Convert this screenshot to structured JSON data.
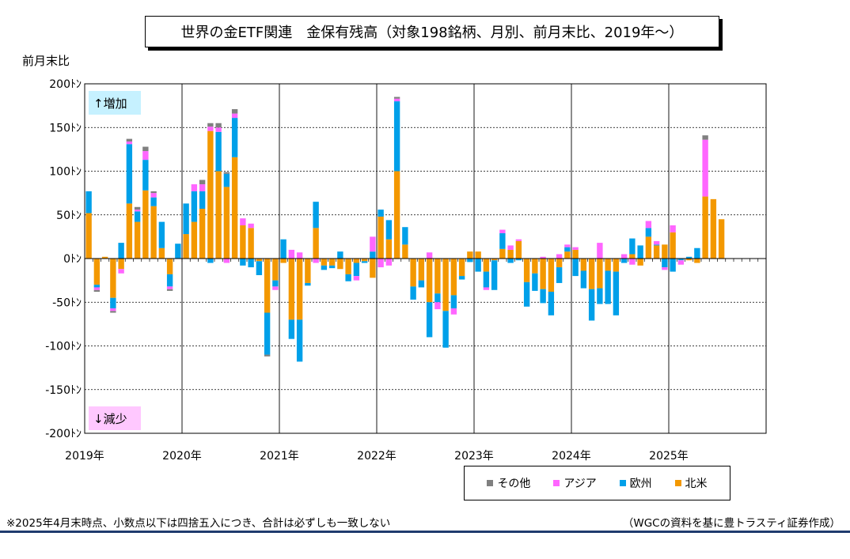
{
  "chart_data": {
    "type": "bar",
    "stacked": true,
    "title": "世界の金ETF関連　金保有残高（対象198銘柄、月別、前月末比、2019年～）",
    "ylabel": "前月末比",
    "ylim": [
      -200,
      200
    ],
    "yticks": [
      200,
      150,
      100,
      50,
      0,
      -50,
      -100,
      -150,
      -200
    ],
    "ytick_unit": "ﾄﾝ",
    "xticks": [
      "2019年",
      "2020年",
      "2021年",
      "2022年",
      "2023年",
      "2024年",
      "2025年"
    ],
    "x_period_months": 84,
    "grid": true,
    "legend_position": "bottom-right",
    "annotations": {
      "increase": "↑増加",
      "decrease": "↓減少"
    },
    "series": [
      {
        "name": "北米",
        "color": "#F39800",
        "values": [
          52,
          -30,
          2,
          -45,
          -12,
          63,
          42,
          78,
          60,
          12,
          -18,
          0,
          28,
          42,
          57,
          146,
          100,
          82,
          116,
          38,
          35,
          -3,
          -62,
          -25,
          -5,
          -70,
          -70,
          -28,
          35,
          -8,
          -8,
          -12,
          -18,
          -5,
          -3,
          -22,
          48,
          22,
          100,
          16,
          -32,
          -25,
          -50,
          -40,
          -60,
          -42,
          -20,
          8,
          8,
          -15,
          -2,
          11,
          10,
          20,
          -27,
          -17,
          -35,
          -38,
          -10,
          8,
          10,
          -14,
          -35,
          -34,
          -14,
          -15,
          0,
          5,
          -8,
          25,
          15,
          16,
          30,
          0,
          -2,
          -5,
          71,
          68,
          45,
          0,
          0,
          0,
          0,
          0,
          0,
          0
        ]
      },
      {
        "name": "欧州",
        "color": "#00A0E9",
        "values": [
          25,
          -3,
          0,
          -12,
          18,
          68,
          12,
          35,
          10,
          30,
          -14,
          17,
          35,
          35,
          20,
          -5,
          45,
          15,
          45,
          -8,
          -10,
          -16,
          -48,
          -7,
          22,
          -22,
          -48,
          -3,
          30,
          -5,
          -3,
          8,
          -8,
          -15,
          -2,
          8,
          8,
          22,
          80,
          20,
          -15,
          -8,
          -40,
          -10,
          -42,
          -15,
          -4,
          -4,
          -15,
          -18,
          -34,
          18,
          -5,
          -2,
          -28,
          -20,
          -16,
          -27,
          -18,
          5,
          -20,
          -20,
          -36,
          -18,
          -38,
          -50,
          -5,
          18,
          15,
          10,
          1,
          -10,
          -15,
          -2,
          2,
          12,
          0,
          0,
          0,
          0,
          0,
          0,
          0,
          0
        ]
      },
      {
        "name": "アジア",
        "color": "#FF66FF",
        "values": [
          0,
          -3,
          0,
          -3,
          -5,
          3,
          2,
          10,
          5,
          0,
          -3,
          0,
          0,
          8,
          8,
          5,
          5,
          -5,
          5,
          8,
          5,
          0,
          0,
          -4,
          0,
          10,
          7,
          0,
          -5,
          0,
          0,
          0,
          0,
          -5,
          0,
          17,
          -10,
          -8,
          3,
          0,
          0,
          0,
          7,
          -8,
          0,
          -7,
          0,
          0,
          0,
          -3,
          0,
          4,
          5,
          2,
          0,
          0,
          2,
          0,
          5,
          3,
          3,
          0,
          0,
          18,
          0,
          0,
          5,
          -7,
          0,
          8,
          4,
          -3,
          8,
          -5,
          0,
          0,
          65,
          0,
          0,
          0,
          0,
          0,
          0,
          0
        ]
      },
      {
        "name": "その他",
        "color": "#808080",
        "values": [
          0,
          -2,
          0,
          -2,
          0,
          3,
          3,
          5,
          2,
          0,
          -2,
          0,
          0,
          0,
          5,
          4,
          5,
          2,
          5,
          0,
          0,
          0,
          -2,
          0,
          0,
          0,
          0,
          0,
          0,
          0,
          0,
          0,
          0,
          0,
          0,
          0,
          0,
          0,
          2,
          0,
          0,
          0,
          0,
          0,
          0,
          0,
          0,
          0,
          0,
          0,
          0,
          0,
          0,
          0,
          0,
          0,
          0,
          0,
          0,
          0,
          0,
          0,
          0,
          0,
          0,
          0,
          0,
          0,
          0,
          0,
          0,
          0,
          0,
          0,
          0,
          0,
          5,
          0,
          0,
          0,
          0,
          0,
          0,
          0
        ]
      }
    ]
  },
  "notes": {
    "left": "※2025年4月末時点、小数点以下は四捨五入につき、合計は必ずしも一致しない",
    "right": "（WGCの資料を基に豊トラスティ証券作成）"
  }
}
